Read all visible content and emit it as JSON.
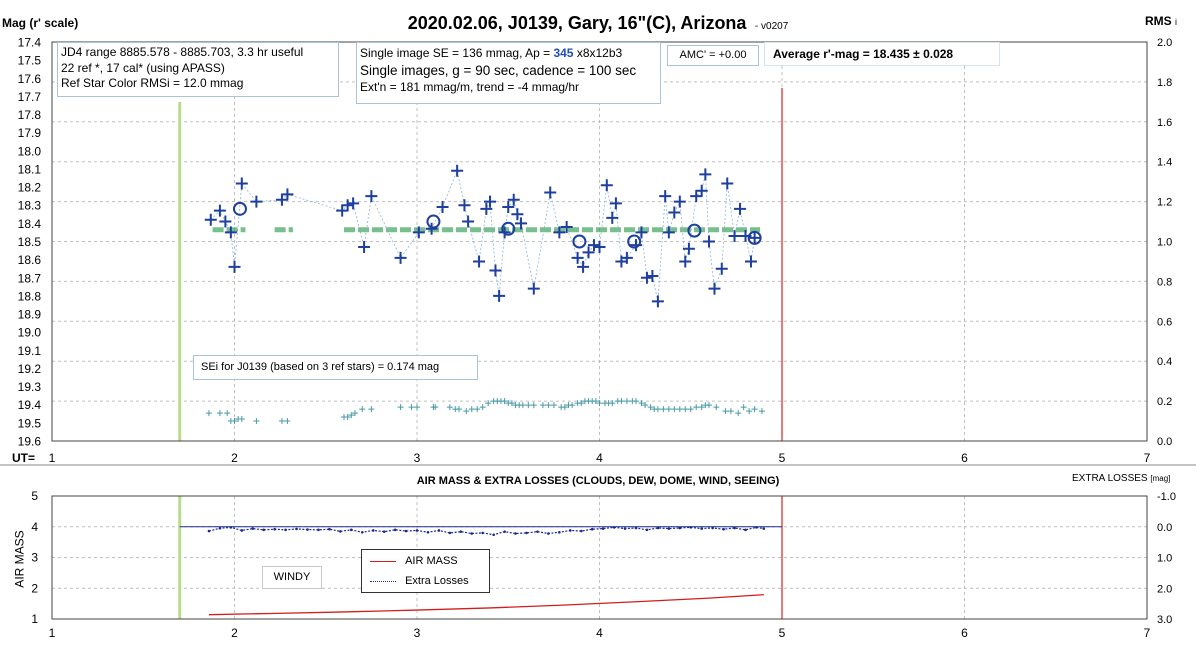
{
  "top_chart": {
    "title": "2020.02.06, J0139, Gary, 16\"(C), Arizona",
    "version": "- v0207",
    "ylabel_left": "Mag (r' scale)",
    "ylabel_right": "RMS",
    "ylabel_right_sub": "i",
    "x_row_label": "UT=",
    "info_left": [
      "JD4 range 8885.578 - 8885.703, 3.3 hr useful",
      "22 ref *, 17 cal* (using APASS)",
      "Ref Star Color RMSi = 12.0 mmag"
    ],
    "info_mid_line1_a": "Single image SE = 136 mmag, Ap = ",
    "info_mid_line1_ap": "345",
    "info_mid_line1_b": " x8x12b3",
    "info_mid_line2": "Single images, g = 90 sec, cadence = 100 sec",
    "info_mid_line3": "Ext'n = 181 mmag/m, trend = -4 mmag/hr",
    "amc": "AMC' = +0.00",
    "avg": "Average r'-mag =  18.435 ± 0.028",
    "sei": "SEi for J0139 (based on 3 ref stars) = 0.174 mag"
  },
  "bottom_chart": {
    "title": "AIR MASS & EXTRA LOSSES (CLOUDS, DEW, DOME, WIND, SEEING)",
    "ylabel_left": "AIR MASS",
    "ylabel_right": "EXTRA LOSSES",
    "ylabel_right_unit": "[mag]",
    "note": "WINDY",
    "legend_air": "AIR MASS",
    "legend_extra": "Extra Losses"
  },
  "colors": {
    "mag": "#1e3f9e",
    "avg": "#2e9c4e",
    "rms": "#4a9aa6",
    "start": "#b8dc8c",
    "end": "#e77b7b",
    "air": "#d21e1e",
    "extra": "#1a2a8c",
    "grid": "#c0c0c0"
  },
  "chart_data": [
    {
      "type": "scatter",
      "title": "2020.02.06, J0139, Gary, 16\"(C), Arizona",
      "xlabel": "UT=",
      "ylabel": "Mag (r' scale)",
      "y2label": "RMS i",
      "xlim": [
        1,
        7
      ],
      "ylim": [
        17.4,
        19.6
      ],
      "y_inverted": true,
      "y2lim": [
        0.0,
        2.0
      ],
      "x_ticks": [
        1,
        2,
        3,
        4,
        5,
        6,
        7
      ],
      "y_ticks": [
        17.4,
        17.5,
        17.6,
        17.7,
        17.8,
        17.9,
        18.0,
        18.1,
        18.2,
        18.3,
        18.4,
        18.5,
        18.6,
        18.7,
        18.8,
        18.9,
        19.0,
        19.1,
        19.2,
        19.3,
        19.4,
        19.5,
        19.6
      ],
      "y2_ticks": [
        0.0,
        0.2,
        0.4,
        0.6,
        0.8,
        1.0,
        1.2,
        1.4,
        1.6,
        1.8,
        2.0
      ],
      "grid": true,
      "average_mag": 18.435,
      "average_x_segments": [
        [
          1.88,
          2.06
        ],
        [
          2.22,
          2.32
        ],
        [
          2.6,
          4.88
        ]
      ],
      "start_ut": 1.7,
      "end_ut": 5.0,
      "series": [
        {
          "marker": "plus",
          "x": [
            1.87,
            1.92,
            1.95,
            1.98,
            2.0,
            2.04,
            2.12,
            2.26,
            2.29,
            2.59,
            2.62,
            2.65,
            2.71,
            2.75,
            2.91,
            3.01,
            3.08,
            3.14,
            3.22,
            3.26,
            3.28,
            3.34,
            3.38,
            3.4,
            3.43,
            3.45,
            3.48,
            3.5,
            3.53,
            3.55,
            3.57,
            3.64,
            3.73,
            3.78,
            3.82,
            3.88,
            3.91,
            3.94,
            3.97,
            4.0,
            4.04,
            4.07,
            4.09,
            4.12,
            4.15,
            4.2,
            4.23,
            4.26,
            4.29,
            4.32,
            4.36,
            4.38,
            4.41,
            4.44,
            4.47,
            4.49,
            4.53,
            4.56,
            4.58,
            4.6,
            4.63,
            4.67,
            4.7,
            4.74,
            4.77,
            4.8,
            4.83,
            4.85
          ],
          "y": [
            18.38,
            18.33,
            18.39,
            18.45,
            18.64,
            18.18,
            18.28,
            18.27,
            18.24,
            18.33,
            18.3,
            18.29,
            18.53,
            18.25,
            18.59,
            18.45,
            18.43,
            18.31,
            18.11,
            18.3,
            18.39,
            18.61,
            18.32,
            18.28,
            18.66,
            18.8,
            18.45,
            18.31,
            18.27,
            18.35,
            18.4,
            18.76,
            18.23,
            18.45,
            18.42,
            18.59,
            18.64,
            18.56,
            18.52,
            18.53,
            18.19,
            18.37,
            18.29,
            18.61,
            18.59,
            18.52,
            18.45,
            18.7,
            18.69,
            18.83,
            18.25,
            18.45,
            18.34,
            18.28,
            18.61,
            18.54,
            18.25,
            18.22,
            18.13,
            18.5,
            18.76,
            18.65,
            18.18,
            18.47,
            18.32,
            18.47,
            18.61,
            18.48
          ]
        },
        {
          "marker": "circle",
          "x": [
            2.03,
            3.09,
            3.5,
            3.89,
            4.19,
            4.52,
            4.85
          ],
          "y": [
            18.32,
            18.39,
            18.43,
            18.5,
            18.5,
            18.44,
            18.48
          ]
        },
        {
          "name": "RMS i",
          "axis": "right",
          "marker": "plus",
          "x": [
            1.86,
            1.92,
            1.96,
            1.98,
            2.0,
            2.02,
            2.04,
            2.12,
            2.26,
            2.29,
            2.6,
            2.62,
            2.64,
            2.66,
            2.7,
            2.75,
            2.91,
            2.97,
            3.0,
            3.09,
            3.1,
            3.18,
            3.21,
            3.23,
            3.27,
            3.3,
            3.33,
            3.36,
            3.39,
            3.42,
            3.44,
            3.46,
            3.48,
            3.5,
            3.52,
            3.54,
            3.56,
            3.58,
            3.61,
            3.64,
            3.69,
            3.72,
            3.75,
            3.79,
            3.81,
            3.83,
            3.85,
            3.88,
            3.9,
            3.92,
            3.94,
            3.96,
            3.98,
            4.0,
            4.03,
            4.05,
            4.07,
            4.1,
            4.12,
            4.15,
            4.18,
            4.2,
            4.23,
            4.25,
            4.28,
            4.3,
            4.32,
            4.35,
            4.38,
            4.41,
            4.44,
            4.47,
            4.5,
            4.53,
            4.56,
            4.58,
            4.6,
            4.64,
            4.69,
            4.72,
            4.76,
            4.79,
            4.82,
            4.85,
            4.89
          ],
          "y": [
            0.14,
            0.14,
            0.14,
            0.1,
            0.1,
            0.11,
            0.11,
            0.1,
            0.1,
            0.1,
            0.12,
            0.12,
            0.13,
            0.14,
            0.16,
            0.16,
            0.17,
            0.17,
            0.17,
            0.17,
            0.17,
            0.17,
            0.16,
            0.16,
            0.15,
            0.16,
            0.16,
            0.17,
            0.19,
            0.2,
            0.2,
            0.2,
            0.2,
            0.19,
            0.19,
            0.18,
            0.18,
            0.18,
            0.18,
            0.18,
            0.18,
            0.18,
            0.18,
            0.17,
            0.17,
            0.18,
            0.18,
            0.19,
            0.19,
            0.2,
            0.2,
            0.2,
            0.2,
            0.19,
            0.19,
            0.19,
            0.19,
            0.2,
            0.2,
            0.2,
            0.2,
            0.2,
            0.19,
            0.18,
            0.17,
            0.16,
            0.16,
            0.16,
            0.16,
            0.16,
            0.16,
            0.16,
            0.16,
            0.17,
            0.17,
            0.18,
            0.18,
            0.17,
            0.15,
            0.15,
            0.14,
            0.17,
            0.15,
            0.16,
            0.15
          ]
        }
      ]
    },
    {
      "type": "line",
      "title": "AIR MASS & EXTRA LOSSES (CLOUDS, DEW, DOME, WIND, SEEING)",
      "ylabel": "AIR MASS",
      "y2label": "EXTRA LOSSES [mag]",
      "xlim": [
        1,
        7
      ],
      "ylim": [
        1,
        5
      ],
      "y2lim": [
        3.0,
        -1.0
      ],
      "x_ticks": [
        1,
        2,
        3,
        4,
        5,
        6,
        7
      ],
      "y_ticks": [
        1,
        2,
        3,
        4,
        5
      ],
      "y2_ticks": [
        -1.0,
        0.0,
        1.0,
        2.0,
        3.0
      ],
      "grid": true,
      "legend": "center-left",
      "start_ut": 1.7,
      "end_ut": 5.0,
      "series": [
        {
          "name": "AIR MASS",
          "x": [
            1.86,
            2.2,
            2.6,
            3.0,
            3.4,
            3.8,
            4.2,
            4.6,
            4.9
          ],
          "y": [
            1.14,
            1.18,
            1.23,
            1.29,
            1.36,
            1.45,
            1.56,
            1.68,
            1.79
          ]
        },
        {
          "name": "Extra Losses",
          "axis": "right",
          "x": [
            1.86,
            1.92,
            1.98,
            2.04,
            2.1,
            2.16,
            2.22,
            2.28,
            2.34,
            2.4,
            2.46,
            2.52,
            2.58,
            2.64,
            2.7,
            2.76,
            2.82,
            2.88,
            2.94,
            3.0,
            3.06,
            3.12,
            3.18,
            3.24,
            3.3,
            3.36,
            3.42,
            3.48,
            3.54,
            3.6,
            3.66,
            3.72,
            3.78,
            3.84,
            3.9,
            3.96,
            4.02,
            4.08,
            4.14,
            4.2,
            4.26,
            4.32,
            4.38,
            4.44,
            4.5,
            4.56,
            4.62,
            4.68,
            4.74,
            4.8,
            4.86,
            4.9
          ],
          "y": [
            0.14,
            0.05,
            0.02,
            0.12,
            0.06,
            0.1,
            0.08,
            0.1,
            0.07,
            0.09,
            0.1,
            0.08,
            0.15,
            0.1,
            0.18,
            0.12,
            0.16,
            0.1,
            0.14,
            0.12,
            0.18,
            0.12,
            0.2,
            0.16,
            0.22,
            0.2,
            0.26,
            0.16,
            0.22,
            0.2,
            0.16,
            0.22,
            0.18,
            0.12,
            0.14,
            0.08,
            0.06,
            0.02,
            0.06,
            0.04,
            0.1,
            0.04,
            0.06,
            0.04,
            0.02,
            0.06,
            0.04,
            0.08,
            0.04,
            0.1,
            0.02,
            0.06
          ]
        }
      ]
    }
  ]
}
